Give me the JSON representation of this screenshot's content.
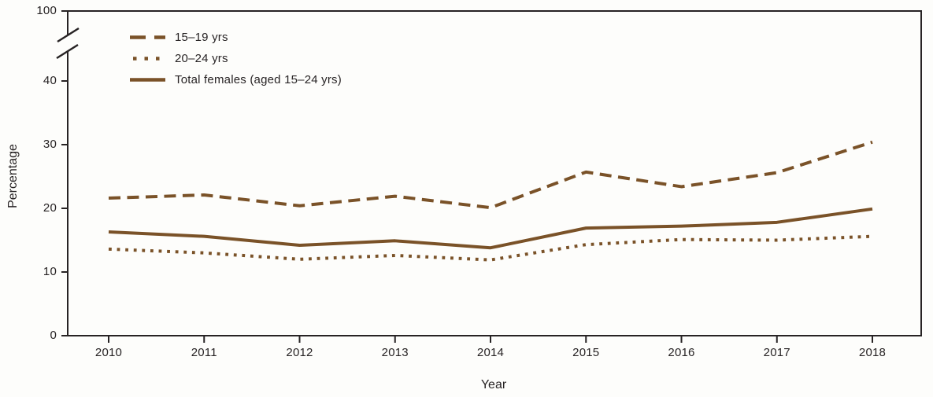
{
  "chart_data": {
    "type": "line",
    "title": "",
    "xlabel": "Year",
    "ylabel": "Percentage",
    "x": [
      "2010",
      "2011",
      "2012",
      "2013",
      "2014",
      "2015",
      "2016",
      "2017",
      "2018"
    ],
    "series": [
      {
        "name": "15–19 yrs",
        "line_style": "dashed",
        "values": [
          21.6,
          22.1,
          20.4,
          21.9,
          20.1,
          25.7,
          23.4,
          25.6,
          30.4
        ]
      },
      {
        "name": "20–24 yrs",
        "line_style": "dotted",
        "values": [
          13.6,
          13.0,
          12.0,
          12.6,
          11.9,
          14.3,
          15.1,
          15.0,
          15.6
        ]
      },
      {
        "name": "Total females (aged 15–24 yrs)",
        "line_style": "solid",
        "values": [
          16.3,
          15.6,
          14.2,
          14.9,
          13.8,
          16.9,
          17.2,
          17.8,
          19.9
        ]
      }
    ],
    "y_ticks": [
      0,
      10,
      20,
      30,
      40
    ],
    "y_axis_break": {
      "enabled": true,
      "top_tick_label": "100"
    },
    "ylim": [
      0,
      100
    ],
    "grid": false,
    "legend_position": "top-left",
    "line_color": "#7a5228",
    "axis_color": "#272324",
    "background_color": "#fdfdfb"
  }
}
